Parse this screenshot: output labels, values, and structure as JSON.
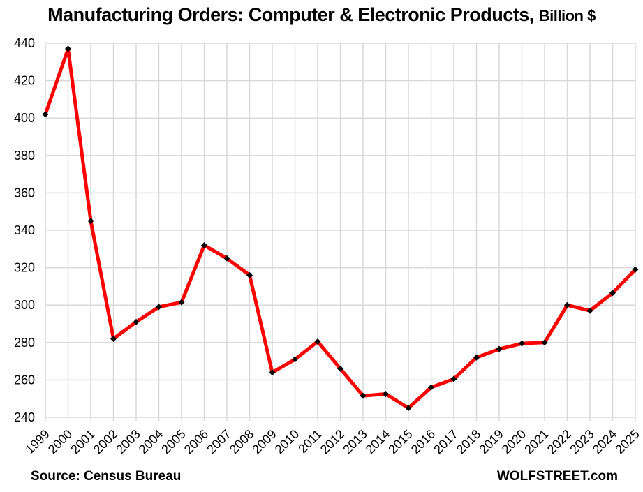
{
  "title": {
    "main": "Manufacturing Orders: Computer & Electronic Products,",
    "suffix": "Billion $"
  },
  "footer": {
    "source": "Source: Census Bureau",
    "brand": "WOLFSTREET.com"
  },
  "chart_data": {
    "type": "line",
    "title": "Manufacturing Orders: Computer & Electronic Products, Billion $",
    "categories": [
      "1999",
      "2000",
      "2001",
      "2002",
      "2003",
      "2004",
      "2005",
      "2006",
      "2007",
      "2008",
      "2009",
      "2010",
      "2011",
      "2012",
      "2013",
      "2014",
      "2015",
      "2016",
      "2017",
      "2018",
      "2019",
      "2020",
      "2021",
      "2022",
      "2023",
      "2024",
      "2025"
    ],
    "series": [
      {
        "name": "Manufacturing orders, computer & electronic products, billion $",
        "color": "#FF0000",
        "marker": "diamond",
        "marker_color": "#000000",
        "values": [
          402,
          437,
          345,
          282,
          291,
          299,
          301.5,
          332,
          325,
          316,
          264,
          271,
          280.5,
          266,
          251.5,
          252.5,
          245,
          256,
          260.5,
          272,
          276.5,
          279.5,
          280,
          300,
          297,
          306.5,
          319
        ]
      }
    ],
    "xlabel": "",
    "ylabel": "",
    "ylim": [
      240,
      440
    ],
    "y_ticks": [
      240,
      260,
      280,
      300,
      320,
      340,
      360,
      380,
      400,
      420,
      440
    ],
    "grid": {
      "horizontal": true,
      "vertical": true,
      "color": "#D9D9D9"
    },
    "legend": "none",
    "tick_label_color": "#000000",
    "source": "Source: Census Bureau",
    "watermark": "WOLFSTREET.com"
  }
}
